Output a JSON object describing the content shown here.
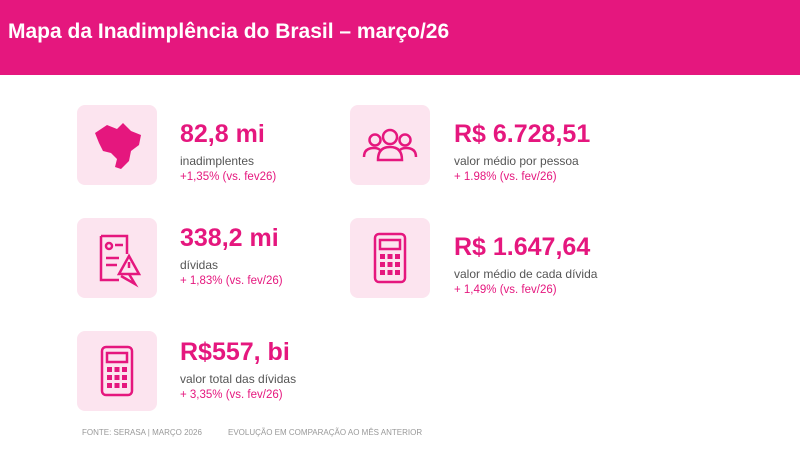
{
  "header": {
    "title": "Mapa da Inadimplência do Brasil – março/26"
  },
  "cards": [
    {
      "value": "82,8 mi",
      "label": "inadimplentes",
      "change": "+1,35% (vs. fev26)"
    },
    {
      "value": "R$ 6.728,51",
      "label": "valor médio por pessoa",
      "change": "+ 1.98% (vs. fev/26)"
    },
    {
      "value": "338,2 mi",
      "label": "dívidas",
      "change": "+ 1,83% (vs. fev/26)"
    },
    {
      "value": "R$ 1.647,64",
      "label": "valor médio de cada dívida",
      "change": "+ 1,49% (vs. fev/26)"
    },
    {
      "value": "R$557, bi",
      "label": "valor total das dívidas",
      "change": "+ 3,35% (vs. fev/26)"
    }
  ],
  "footer": {
    "source": "FONTE: SERASA | MARÇO 2026",
    "note": "EVOLUÇÃO EM COMPARAÇÃO AO MÊS ANTERIOR"
  }
}
